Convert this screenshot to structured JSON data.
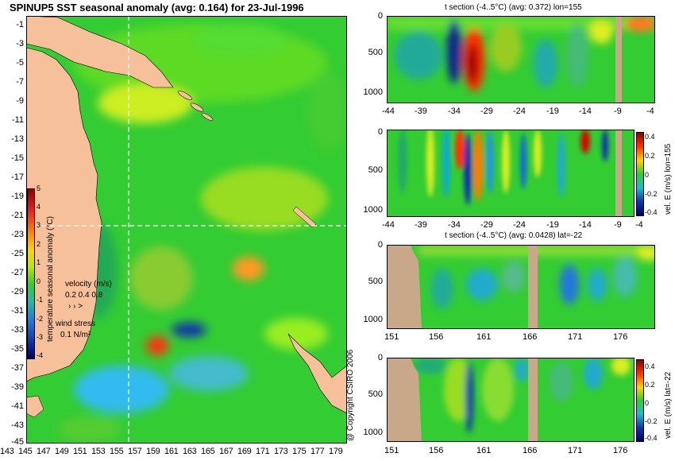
{
  "main_map": {
    "title": "SPINUP5 SST seasonal anomaly (avg: 0.164) for 23-Jul-1996",
    "lat_labels": [
      "-1",
      "-3",
      "-5",
      "-7",
      "-9",
      "-11",
      "-13",
      "-15",
      "-17",
      "-19",
      "-21",
      "-23",
      "-25",
      "-27",
      "-29",
      "-31",
      "-33",
      "-35",
      "-37",
      "-39",
      "-41",
      "-43",
      "-45"
    ],
    "lon_labels": [
      "143",
      "145",
      "147",
      "149",
      "151",
      "153",
      "155",
      "157",
      "159",
      "161",
      "163",
      "165",
      "167",
      "169",
      "171",
      "173",
      "175",
      "177",
      "179"
    ],
    "colorbar": {
      "label": "temperature seasonal anomaly (°C)",
      "ticks": [
        "5",
        "4",
        "3",
        "2",
        "1",
        "0",
        "-1",
        "-2",
        "-3",
        "-4"
      ]
    },
    "velocity_legend": {
      "title": "velocity (m/s)",
      "values": "0.2 0.4 0.8"
    },
    "wind_legend": {
      "title": "wind stress",
      "value": "0.1 N/m²"
    },
    "copyright": "@ Copyright CSIRO 2006",
    "section_lon": 155,
    "section_lat": -22
  },
  "panels": [
    {
      "id": "t-lon",
      "title": "t section (-4..5°C) (avg: 0.372) lon=155",
      "y_ticks": [
        "0",
        "500",
        "1000"
      ],
      "x_ticks": [
        "-44",
        "-39",
        "-34",
        "-29",
        "-24",
        "-19",
        "-14",
        "-9",
        "-4"
      ]
    },
    {
      "id": "v-lon",
      "title": "",
      "y_ticks": [
        "0",
        "500",
        "1000"
      ],
      "x_ticks": [
        "-44",
        "-39",
        "-34",
        "-29",
        "-24",
        "-19",
        "-14",
        "-9",
        "-4"
      ],
      "side_label": "vel. E (m/s) lon=155",
      "cbar_ticks": [
        "0.4",
        "0.2",
        "0",
        "-0.2",
        "-0.4"
      ]
    },
    {
      "id": "t-lat",
      "title": "t section (-4..5°C) (avg: 0.0428) lat=-22",
      "y_ticks": [
        "0",
        "500",
        "1000"
      ],
      "x_ticks": [
        "151",
        "156",
        "161",
        "166",
        "171",
        "176"
      ]
    },
    {
      "id": "v-lat",
      "title": "",
      "y_ticks": [
        "0",
        "500",
        "1000"
      ],
      "x_ticks": [
        "151",
        "156",
        "161",
        "166",
        "171",
        "176"
      ],
      "side_label": "vel. E (m/s) lat=-22",
      "cbar_ticks": [
        "0.4",
        "0.2",
        "0",
        "-0.2",
        "-0.4"
      ]
    }
  ],
  "colors": {
    "ocean_base": "#33cc33",
    "land": "#f5c09a",
    "seafloor": "#c8a888",
    "warm": "#ff2a00",
    "cool": "#1060ff",
    "grid_line": "#ffffff"
  }
}
